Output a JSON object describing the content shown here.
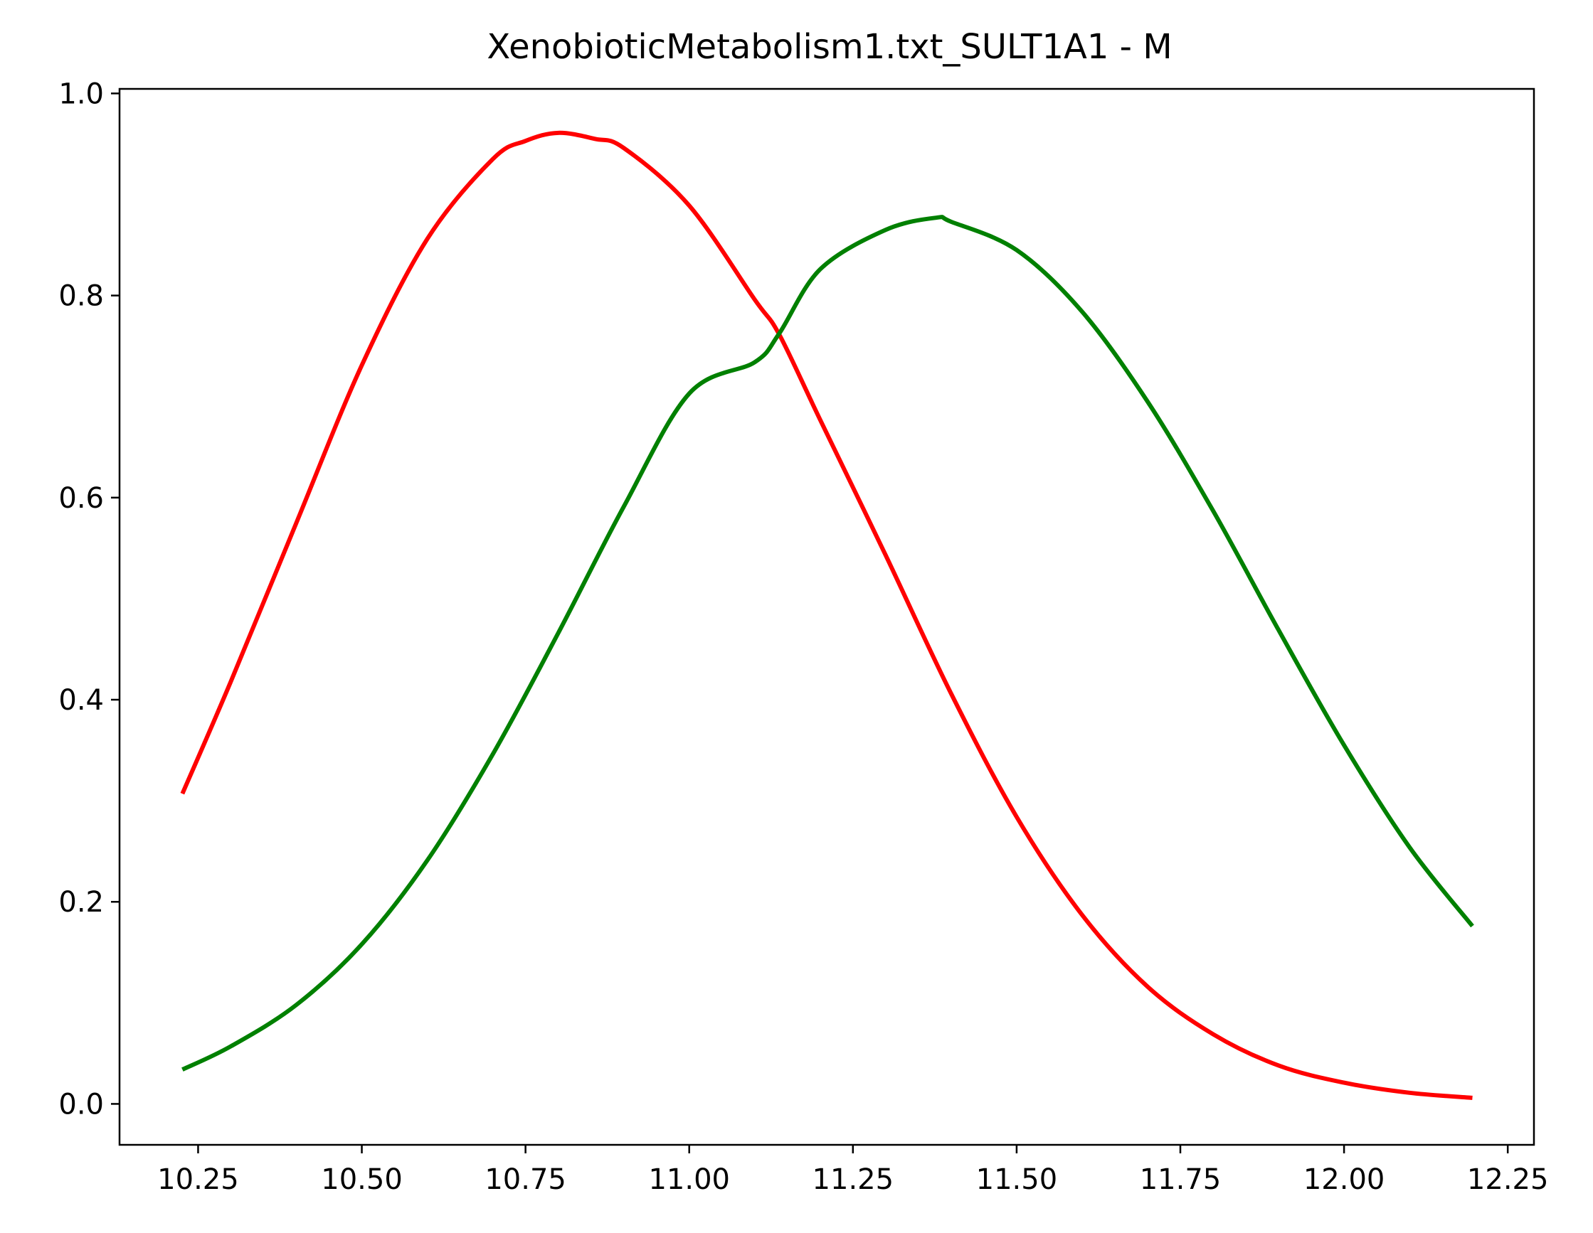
{
  "chart_data": {
    "type": "line",
    "title": "XenobioticMetabolism1.txt_SULT1A1 - M",
    "xlabel": "",
    "ylabel": "",
    "xlim": [
      10.13,
      12.29
    ],
    "ylim": [
      -0.0405,
      1.0045
    ],
    "grid": false,
    "legend": "none",
    "x_ticks": [
      10.25,
      10.5,
      10.75,
      11.0,
      11.25,
      11.5,
      11.75,
      12.0,
      12.25
    ],
    "x_tick_labels": [
      "10.25",
      "10.50",
      "10.75",
      "11.00",
      "11.25",
      "11.50",
      "11.75",
      "12.00",
      "12.25"
    ],
    "y_ticks": [
      0.0,
      0.2,
      0.4,
      0.6,
      0.8,
      1.0
    ],
    "y_tick_labels": [
      "0.0",
      "0.2",
      "0.4",
      "0.6",
      "0.8",
      "1.0"
    ],
    "series": [
      {
        "color": "#ff0000",
        "x": [
          10.226,
          10.3,
          10.4,
          10.5,
          10.6,
          10.7,
          10.75,
          10.8,
          10.856,
          10.9,
          11.0,
          11.1,
          11.137,
          11.2,
          11.3,
          11.4,
          11.5,
          11.6,
          11.7,
          11.8,
          11.9,
          12.0,
          12.1,
          12.196
        ],
        "y": [
          0.307,
          0.418,
          0.575,
          0.731,
          0.856,
          0.935,
          0.953,
          0.961,
          0.955,
          0.946,
          0.889,
          0.796,
          0.762,
          0.677,
          0.543,
          0.406,
          0.284,
          0.187,
          0.116,
          0.069,
          0.038,
          0.021,
          0.011,
          0.006
        ]
      },
      {
        "color": "#008000",
        "x": [
          10.226,
          10.3,
          10.4,
          10.5,
          10.6,
          10.7,
          10.8,
          10.9,
          11.0,
          11.1,
          11.137,
          11.2,
          11.3,
          11.377,
          11.4,
          11.5,
          11.6,
          11.7,
          11.8,
          11.9,
          12.0,
          12.1,
          12.196
        ],
        "y": [
          0.034,
          0.057,
          0.098,
          0.158,
          0.241,
          0.346,
          0.466,
          0.591,
          0.703,
          0.734,
          0.762,
          0.826,
          0.865,
          0.877,
          0.873,
          0.845,
          0.784,
          0.695,
          0.587,
          0.469,
          0.355,
          0.254,
          0.176
        ]
      }
    ]
  }
}
